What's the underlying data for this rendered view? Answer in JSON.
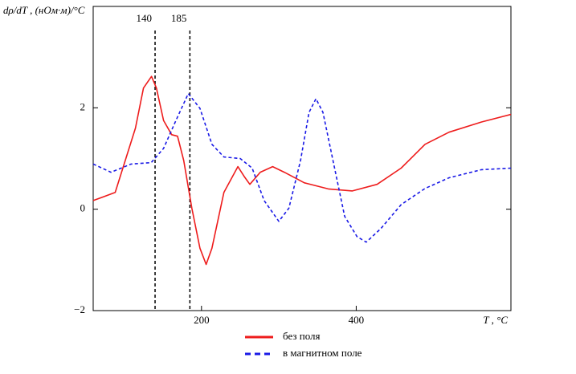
{
  "chart_data": {
    "type": "line",
    "y_label": "dρ/dT , (нОм·м)/°C",
    "x_label": "T , °C",
    "xlim": [
      60,
      600
    ],
    "xticks": [
      200,
      400
    ],
    "ylim": [
      -2,
      4
    ],
    "yticks": [
      {
        "value": -2,
        "label": "−2"
      },
      0,
      2
    ],
    "vlines": [
      140,
      185
    ],
    "series": [
      {
        "name": "без поля",
        "color": "#ee1c1c",
        "dash": false,
        "x": [
          60,
          88.5,
          114.6,
          125,
          135.4,
          141.7,
          151,
          161.5,
          169,
          177,
          187.5,
          198,
          206,
          213.5,
          229,
          247,
          255,
          262.5,
          276,
          292,
          307,
          333,
          364,
          395,
          427,
          458,
          489,
          520,
          562,
          600
        ],
        "values": [
          0.17,
          0.33,
          1.6,
          2.39,
          2.62,
          2.39,
          1.75,
          1.47,
          1.44,
          0.96,
          0.02,
          -0.77,
          -1.09,
          -0.77,
          0.33,
          0.84,
          0.65,
          0.49,
          0.73,
          0.84,
          0.73,
          0.52,
          0.4,
          0.36,
          0.49,
          0.81,
          1.28,
          1.52,
          1.72,
          1.87
        ]
      },
      {
        "name": "в магнитном поле",
        "color": "#1a1ae6",
        "dash": true,
        "x": [
          60,
          83,
          109,
          135,
          151,
          167,
          183,
          198,
          213.5,
          229,
          250,
          265.5,
          281,
          300,
          313,
          328,
          339,
          348,
          357,
          370,
          385,
          401,
          413,
          432,
          458,
          489,
          520,
          562,
          600
        ],
        "values": [
          0.89,
          0.73,
          0.89,
          0.92,
          1.2,
          1.75,
          2.28,
          1.99,
          1.28,
          1.03,
          1.0,
          0.81,
          0.17,
          -0.24,
          0.02,
          0.96,
          1.91,
          2.18,
          1.91,
          0.96,
          -0.14,
          -0.54,
          -0.65,
          -0.38,
          0.09,
          0.41,
          0.62,
          0.78,
          0.81
        ]
      }
    ]
  }
}
